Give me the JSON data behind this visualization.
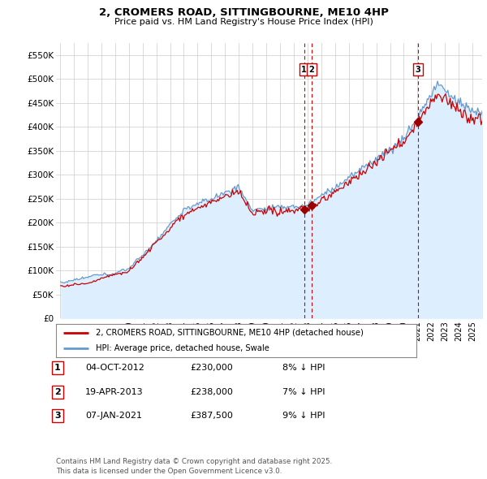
{
  "title": "2, CROMERS ROAD, SITTINGBOURNE, ME10 4HP",
  "subtitle": "Price paid vs. HM Land Registry's House Price Index (HPI)",
  "bg_color": "#ffffff",
  "grid_color": "#cccccc",
  "line1_color": "#cc0000",
  "line2_color": "#6699cc",
  "line2_fill_color": "#ddeeff",
  "ylim": [
    0,
    575000
  ],
  "yticks": [
    0,
    50000,
    100000,
    150000,
    200000,
    250000,
    300000,
    350000,
    400000,
    450000,
    500000,
    550000
  ],
  "ytick_labels": [
    "£0",
    "£50K",
    "£100K",
    "£150K",
    "£200K",
    "£250K",
    "£300K",
    "£350K",
    "£400K",
    "£450K",
    "£500K",
    "£550K"
  ],
  "year_start": 1995,
  "year_end": 2025,
  "sale_year_floats": [
    2012.75,
    2013.29,
    2021.04
  ],
  "sale_prices": [
    230000,
    238000,
    387500
  ],
  "sale_labels": [
    "1",
    "2",
    "3"
  ],
  "table_rows": [
    [
      "1",
      "04-OCT-2012",
      "£230,000",
      "8% ↓ HPI"
    ],
    [
      "2",
      "19-APR-2013",
      "£238,000",
      "7% ↓ HPI"
    ],
    [
      "3",
      "07-JAN-2021",
      "£387,500",
      "9% ↓ HPI"
    ]
  ],
  "legend_line1": "2, CROMERS ROAD, SITTINGBOURNE, ME10 4HP (detached house)",
  "legend_line2": "HPI: Average price, detached house, Swale",
  "footer": "Contains HM Land Registry data © Crown copyright and database right 2025.\nThis data is licensed under the Open Government Licence v3.0."
}
